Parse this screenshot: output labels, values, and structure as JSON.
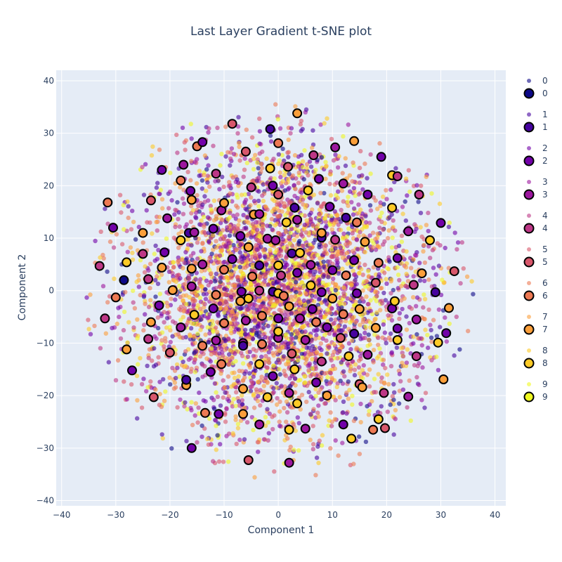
{
  "chart_data": {
    "type": "scatter",
    "title": "Last Layer Gradient t-SNE plot",
    "xlabel": "Component 1",
    "ylabel": "Component 2",
    "xlim": [
      -41,
      42
    ],
    "ylim": [
      -41,
      42
    ],
    "xticks": [
      -40,
      -30,
      -20,
      -10,
      0,
      10,
      20,
      30,
      40
    ],
    "yticks": [
      -40,
      -30,
      -20,
      -10,
      0,
      10,
      20,
      30,
      40
    ],
    "x_tick_labels": [
      "−40",
      "−30",
      "−20",
      "−10",
      "0",
      "10",
      "20",
      "30",
      "40"
    ],
    "y_tick_labels": [
      "−40",
      "−30",
      "−20",
      "−10",
      "0",
      "10",
      "20",
      "30",
      "40"
    ],
    "grid": true,
    "legend_position": "right",
    "plot_background": "#e5ecf6",
    "grid_color": "#ffffff",
    "cloud_radius": 36,
    "series_colors": [
      "#0d0887",
      "#46039f",
      "#7201a8",
      "#9c179e",
      "#bd3786",
      "#d8576b",
      "#ed7953",
      "#fb9f3a",
      "#fdca26",
      "#f0f921"
    ],
    "legend": [
      {
        "label": "0",
        "marker": "small",
        "color": "#0d0887"
      },
      {
        "label": "0",
        "marker": "large",
        "color": "#0d0887"
      },
      {
        "label": "1",
        "marker": "small",
        "color": "#46039f"
      },
      {
        "label": "1",
        "marker": "large",
        "color": "#46039f"
      },
      {
        "label": "2",
        "marker": "small",
        "color": "#7201a8"
      },
      {
        "label": "2",
        "marker": "large",
        "color": "#7201a8"
      },
      {
        "label": "3",
        "marker": "small",
        "color": "#9c179e"
      },
      {
        "label": "3",
        "marker": "large",
        "color": "#9c179e"
      },
      {
        "label": "4",
        "marker": "small",
        "color": "#bd3786"
      },
      {
        "label": "4",
        "marker": "large",
        "color": "#bd3786"
      },
      {
        "label": "5",
        "marker": "small",
        "color": "#d8576b"
      },
      {
        "label": "5",
        "marker": "large",
        "color": "#d8576b"
      },
      {
        "label": "6",
        "marker": "small",
        "color": "#ed7953"
      },
      {
        "label": "6",
        "marker": "large",
        "color": "#ed7953"
      },
      {
        "label": "7",
        "marker": "small",
        "color": "#fb9f3a"
      },
      {
        "label": "7",
        "marker": "large",
        "color": "#fb9f3a"
      },
      {
        "label": "8",
        "marker": "small",
        "color": "#fdca26"
      },
      {
        "label": "8",
        "marker": "large",
        "color": "#fdca26"
      },
      {
        "label": "9",
        "marker": "small",
        "color": "#f0f921"
      },
      {
        "label": "9",
        "marker": "large",
        "color": "#f0f921"
      }
    ],
    "highlighted_points": [
      [
        -31.5,
        16.8,
        6
      ],
      [
        -30.5,
        12,
        2
      ],
      [
        -33,
        4.7,
        4
      ],
      [
        -28.5,
        2,
        0
      ],
      [
        -30,
        -1.3,
        6
      ],
      [
        -32,
        -5.3,
        4
      ],
      [
        -28,
        5.4,
        8
      ],
      [
        -28,
        -11.2,
        7
      ],
      [
        -27,
        -15.2,
        2
      ],
      [
        -25,
        11,
        7
      ],
      [
        -25,
        7,
        4
      ],
      [
        -24,
        2.2,
        4
      ],
      [
        -23.5,
        -6,
        7
      ],
      [
        -24,
        -9.2,
        4
      ],
      [
        -23,
        -20.3,
        5
      ],
      [
        -23.5,
        17.2,
        5
      ],
      [
        -21.5,
        23,
        2
      ],
      [
        -21,
        7.3,
        2
      ],
      [
        -21.5,
        4.4,
        7
      ],
      [
        -22,
        -2.8,
        2
      ],
      [
        -20.5,
        13.8,
        3
      ],
      [
        -20,
        -11.8,
        5
      ],
      [
        -19.5,
        0.1,
        7
      ],
      [
        -18,
        21,
        6
      ],
      [
        -17.5,
        24,
        3
      ],
      [
        -18,
        9.6,
        8
      ],
      [
        -18,
        -7,
        3
      ],
      [
        -17,
        -18,
        7
      ],
      [
        -17,
        -17,
        1
      ],
      [
        -16.5,
        11,
        1
      ],
      [
        -16.2,
        19,
        2
      ],
      [
        -16,
        17.3,
        7
      ],
      [
        -16,
        4.2,
        7
      ],
      [
        -16,
        0.8,
        3
      ],
      [
        -16,
        -30,
        2
      ],
      [
        -15.5,
        -4.6,
        8
      ],
      [
        -15.5,
        11.1,
        3
      ],
      [
        -15,
        27.5,
        6
      ],
      [
        -14,
        28.3,
        2
      ],
      [
        -14,
        5,
        3
      ],
      [
        -14,
        -10.5,
        6
      ],
      [
        -13.5,
        -23.3,
        6
      ],
      [
        -12.5,
        -15.5,
        2
      ],
      [
        -12,
        11.8,
        2
      ],
      [
        -12,
        -3.4,
        2
      ],
      [
        -11.5,
        22.3,
        4
      ],
      [
        -11.5,
        -9.5,
        3
      ],
      [
        -11.5,
        -0.8,
        6
      ],
      [
        -11,
        -23.5,
        2
      ],
      [
        -10.5,
        15.3,
        3
      ],
      [
        -10,
        16.7,
        7
      ],
      [
        -10,
        4,
        6
      ],
      [
        -10,
        -6.2,
        6
      ],
      [
        -10.5,
        -14,
        6
      ],
      [
        -8.5,
        31.8,
        5
      ],
      [
        -8.5,
        6,
        2
      ],
      [
        -7,
        10.4,
        2
      ],
      [
        -6.8,
        -0.2,
        2
      ],
      [
        -7,
        -2,
        7
      ],
      [
        -6.5,
        -10,
        3
      ],
      [
        -6.5,
        -18.7,
        7
      ],
      [
        -6.5,
        -23.5,
        7
      ],
      [
        -6.5,
        -10.5,
        1
      ],
      [
        -6,
        26.5,
        5
      ],
      [
        -6,
        -5.7,
        3
      ],
      [
        -5.5,
        8.3,
        7
      ],
      [
        -5.5,
        -1.5,
        8
      ],
      [
        -5.5,
        -32.3,
        5
      ],
      [
        -5,
        19.7,
        4
      ],
      [
        -4.8,
        2.7,
        6
      ],
      [
        -4.5,
        14.5,
        7
      ],
      [
        -3.5,
        14.6,
        3
      ],
      [
        -3.5,
        4.8,
        1
      ],
      [
        -3.5,
        0,
        4
      ],
      [
        -3.5,
        -14,
        8
      ],
      [
        -3.5,
        -25.5,
        3
      ],
      [
        -3,
        -4.8,
        6
      ],
      [
        -3,
        -10.2,
        6
      ],
      [
        -2,
        9.9,
        3
      ],
      [
        -2,
        -20.3,
        8
      ],
      [
        -1.5,
        30.8,
        1
      ],
      [
        -1.5,
        23.3,
        8
      ],
      [
        -1,
        -16.3,
        2
      ],
      [
        -1,
        -0.2,
        1
      ],
      [
        -1,
        20,
        2
      ],
      [
        -0.5,
        9.6,
        3
      ],
      [
        0,
        4.8,
        8
      ],
      [
        0,
        -0.5,
        8
      ],
      [
        0,
        -5.3,
        2
      ],
      [
        0,
        -9,
        3
      ],
      [
        0,
        -7.8,
        8
      ],
      [
        0,
        28.1,
        6
      ],
      [
        0,
        18.3,
        5
      ],
      [
        0.5,
        2.9,
        4
      ],
      [
        1,
        -1,
        6
      ],
      [
        1.5,
        13,
        8
      ],
      [
        1.8,
        23.6,
        5
      ],
      [
        2,
        -3,
        7
      ],
      [
        2,
        -19.5,
        3
      ],
      [
        2,
        -26.5,
        8
      ],
      [
        2,
        -32.8,
        3
      ],
      [
        2.5,
        7.1,
        1
      ],
      [
        2.5,
        -12,
        5
      ],
      [
        3,
        -15,
        8
      ],
      [
        3,
        15.8,
        1
      ],
      [
        3.5,
        3.4,
        2
      ],
      [
        3.5,
        33.8,
        7
      ],
      [
        3.5,
        13.5,
        3
      ],
      [
        3.5,
        -21.5,
        8
      ],
      [
        4,
        7.2,
        8
      ],
      [
        4,
        -5.3,
        3
      ],
      [
        5,
        -26.3,
        3
      ],
      [
        5,
        -9.4,
        3
      ],
      [
        5.5,
        19.1,
        8
      ],
      [
        6,
        4.9,
        3
      ],
      [
        6,
        1,
        8
      ],
      [
        6.3,
        -3.5,
        2
      ],
      [
        6.5,
        25.8,
        4
      ],
      [
        7,
        -6,
        6
      ],
      [
        7,
        -17.5,
        2
      ],
      [
        7.5,
        21.3,
        2
      ],
      [
        8,
        10.1,
        1
      ],
      [
        8,
        11,
        7
      ],
      [
        8,
        -13.5,
        4
      ],
      [
        8,
        -0.3,
        2
      ],
      [
        9,
        -20,
        7
      ],
      [
        9,
        -7,
        2
      ],
      [
        9.5,
        16,
        2
      ],
      [
        10,
        -1.5,
        7
      ],
      [
        10,
        3.9,
        2
      ],
      [
        10.5,
        27.3,
        3
      ],
      [
        10.5,
        9.7,
        4
      ],
      [
        11.5,
        -9,
        5
      ],
      [
        12,
        20.4,
        3
      ],
      [
        12,
        -25.5,
        2
      ],
      [
        12,
        -4.5,
        6
      ],
      [
        12.5,
        13.9,
        1
      ],
      [
        12.5,
        2.9,
        6
      ],
      [
        13,
        -12.5,
        8
      ],
      [
        13.5,
        -28.2,
        8
      ],
      [
        14,
        28.5,
        7
      ],
      [
        14,
        5.8,
        2
      ],
      [
        14.5,
        -0.5,
        2
      ],
      [
        14.5,
        13,
        6
      ],
      [
        14,
        -8.2,
        1
      ],
      [
        15,
        -3.5,
        7
      ],
      [
        15,
        -17.8,
        5
      ],
      [
        15.5,
        -18.4,
        7
      ],
      [
        16,
        9.3,
        7
      ],
      [
        16.5,
        -12.2,
        3
      ],
      [
        16.5,
        18.3,
        2
      ],
      [
        17.5,
        -26.5,
        6
      ],
      [
        18,
        1.5,
        5
      ],
      [
        18,
        -7.1,
        7
      ],
      [
        18.5,
        5.3,
        6
      ],
      [
        18.5,
        -24.5,
        8
      ],
      [
        19,
        25.5,
        2
      ],
      [
        19.7,
        -26.2,
        5
      ],
      [
        19.5,
        -19.5,
        4
      ],
      [
        21,
        -3.4,
        2
      ],
      [
        21.5,
        -2,
        8
      ],
      [
        21,
        22,
        8
      ],
      [
        21,
        15.8,
        8
      ],
      [
        22,
        6.2,
        2
      ],
      [
        22,
        -7.2,
        2
      ],
      [
        22,
        -9.4,
        8
      ],
      [
        22,
        21.8,
        4
      ],
      [
        24,
        -20.2,
        3
      ],
      [
        24,
        11.3,
        3
      ],
      [
        25,
        1.1,
        4
      ],
      [
        25.5,
        -5.5,
        3
      ],
      [
        25.5,
        -12.5,
        4
      ],
      [
        26,
        18.3,
        4
      ],
      [
        26.5,
        3.3,
        7
      ],
      [
        28,
        9.6,
        8
      ],
      [
        29,
        -0.3,
        1
      ],
      [
        29.5,
        -9.9,
        8
      ],
      [
        30,
        12.9,
        2
      ],
      [
        30.5,
        -16.9,
        7
      ],
      [
        31,
        -8.1,
        2
      ],
      [
        31.5,
        -3.3,
        7
      ],
      [
        32.5,
        3.7,
        5
      ]
    ]
  }
}
